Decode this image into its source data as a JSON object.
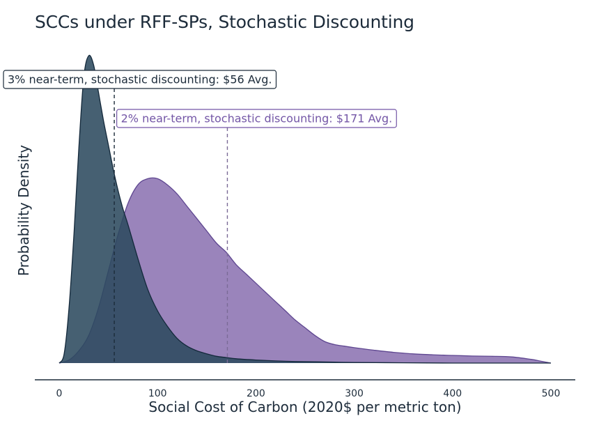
{
  "chart_data": {
    "type": "area",
    "title": "SCCs under RFF-SPs, Stochastic Discounting",
    "xlabel": "Social Cost of Carbon (2020$ per metric ton)",
    "ylabel": "Probability Density",
    "xlim": [
      0,
      500
    ],
    "ylim": [
      0,
      1
    ],
    "x_ticks": [
      0,
      100,
      200,
      300,
      400,
      500
    ],
    "grid": false,
    "series": [
      {
        "name": "2% near-term, stochastic discounting",
        "color": "#7d62a8",
        "fill_opacity": 0.78,
        "mean": 171,
        "annotation": "2% near-term, stochastic discounting: $171 Avg.",
        "x": [
          0,
          10,
          20,
          30,
          40,
          50,
          60,
          70,
          80,
          90,
          100,
          110,
          120,
          130,
          140,
          150,
          160,
          170,
          180,
          190,
          200,
          210,
          220,
          230,
          240,
          250,
          260,
          270,
          280,
          290,
          300,
          320,
          340,
          360,
          380,
          400,
          420,
          440,
          460,
          480,
          490,
          500
        ],
        "y": [
          0.0,
          0.01,
          0.04,
          0.09,
          0.18,
          0.3,
          0.42,
          0.52,
          0.58,
          0.6,
          0.6,
          0.58,
          0.55,
          0.51,
          0.47,
          0.43,
          0.39,
          0.36,
          0.32,
          0.29,
          0.26,
          0.23,
          0.2,
          0.17,
          0.14,
          0.115,
          0.09,
          0.07,
          0.06,
          0.055,
          0.05,
          0.042,
          0.035,
          0.03,
          0.027,
          0.025,
          0.023,
          0.022,
          0.02,
          0.012,
          0.006,
          0.0
        ]
      },
      {
        "name": "3% near-term, stochastic discounting",
        "color": "#2c4a5e",
        "fill_opacity": 0.88,
        "mean": 56,
        "annotation": "3% near-term, stochastic discounting: $56 Avg.",
        "x": [
          0,
          5,
          10,
          15,
          20,
          25,
          30,
          35,
          40,
          45,
          50,
          55,
          60,
          65,
          70,
          80,
          90,
          100,
          110,
          120,
          130,
          140,
          150,
          160,
          170,
          180,
          200,
          220,
          240,
          260,
          280,
          300,
          350,
          400,
          450,
          500
        ],
        "y": [
          0.0,
          0.03,
          0.18,
          0.42,
          0.7,
          0.93,
          1.0,
          0.97,
          0.88,
          0.79,
          0.71,
          0.63,
          0.56,
          0.5,
          0.45,
          0.34,
          0.24,
          0.17,
          0.12,
          0.08,
          0.055,
          0.04,
          0.03,
          0.022,
          0.018,
          0.014,
          0.01,
          0.007,
          0.005,
          0.004,
          0.003,
          0.002,
          0.001,
          0.0,
          0.0,
          0.0
        ]
      }
    ]
  }
}
